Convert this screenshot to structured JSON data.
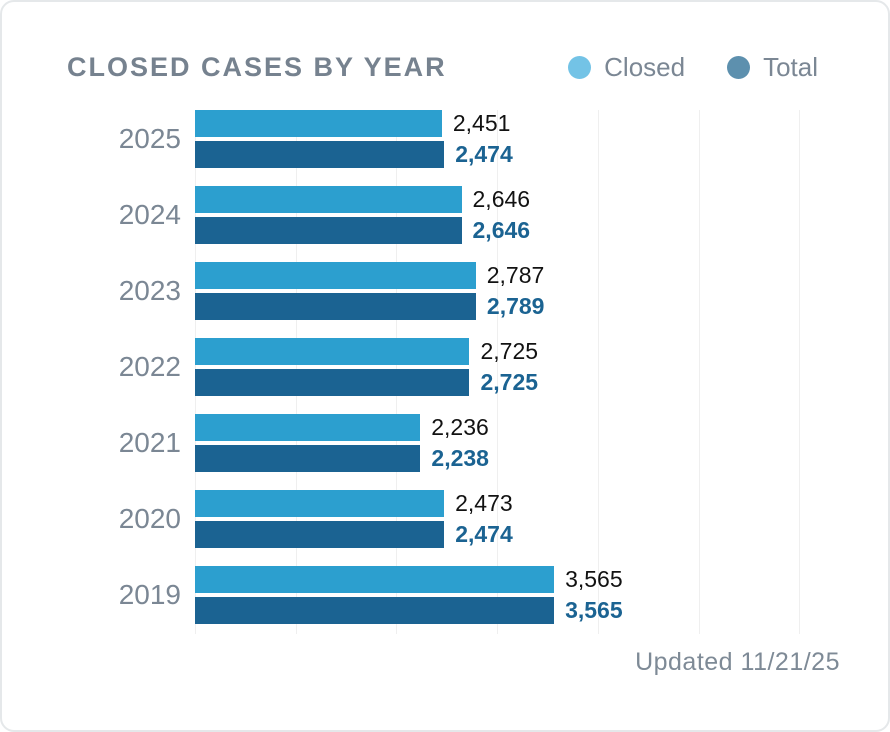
{
  "header": {
    "title": "CLOSED CASES BY YEAR"
  },
  "footer": {
    "updated": "Updated 11/21/25"
  },
  "colors": {
    "closed_bar": "#2C9FCF",
    "total_bar": "#1B6392",
    "closed_legend_dot": "#73C3E6",
    "total_legend_dot": "#5D90AE",
    "closed_value_text": "#121212",
    "total_value_text": "#1B6392",
    "muted_text": "#7B8794",
    "gridline": "#EFEFEF",
    "card_border": "#E5E8EA"
  },
  "chart_data": {
    "type": "bar",
    "orientation": "horizontal",
    "title": "CLOSED CASES BY YEAR",
    "categories": [
      "2025",
      "2024",
      "2023",
      "2022",
      "2021",
      "2020",
      "2019"
    ],
    "series": [
      {
        "name": "Closed",
        "color": "#2C9FCF",
        "legend_dot_color": "#73C3E6",
        "label_color": "#121212",
        "label_bold": false,
        "values": [
          2451,
          2646,
          2787,
          2725,
          2236,
          2473,
          3565
        ],
        "labels": [
          "2,451",
          "2,646",
          "2,787",
          "2,725",
          "2,236",
          "2,473",
          "3,565"
        ]
      },
      {
        "name": "Total",
        "color": "#1B6392",
        "legend_dot_color": "#5D90AE",
        "label_color": "#1B6392",
        "label_bold": true,
        "values": [
          2474,
          2646,
          2789,
          2725,
          2238,
          2474,
          3565
        ],
        "labels": [
          "2,474",
          "2,646",
          "2,789",
          "2,725",
          "2,238",
          "2,474",
          "3,565"
        ]
      }
    ],
    "xlabel": "",
    "ylabel": "",
    "xlim": [
      0,
      6880
    ],
    "grid": true,
    "grid_step": 1000,
    "legend_position": "top-right",
    "value_labels": "outside-end",
    "updated_note": "Updated 11/21/25"
  }
}
